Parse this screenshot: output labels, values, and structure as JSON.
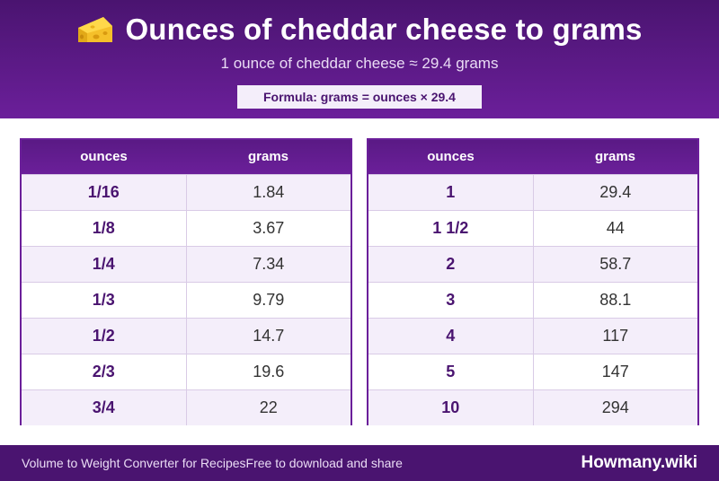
{
  "header": {
    "title": "Ounces of cheddar cheese to grams",
    "icon": "cheese-icon",
    "subtitle": "1 ounce of cheddar cheese ≈ 29.4 grams",
    "formula": "Formula: grams = ounces × 29.4"
  },
  "tables": [
    {
      "col_ounces": "ounces",
      "col_grams": "grams",
      "rows": [
        {
          "ounces": "1/16",
          "grams": "1.84"
        },
        {
          "ounces": "1/8",
          "grams": "3.67"
        },
        {
          "ounces": "1/4",
          "grams": "7.34"
        },
        {
          "ounces": "1/3",
          "grams": "9.79"
        },
        {
          "ounces": "1/2",
          "grams": "14.7"
        },
        {
          "ounces": "2/3",
          "grams": "19.6"
        },
        {
          "ounces": "3/4",
          "grams": "22"
        }
      ]
    },
    {
      "col_ounces": "ounces",
      "col_grams": "grams",
      "rows": [
        {
          "ounces": "1",
          "grams": "29.4"
        },
        {
          "ounces": "1 1/2",
          "grams": "44"
        },
        {
          "ounces": "2",
          "grams": "58.7"
        },
        {
          "ounces": "3",
          "grams": "88.1"
        },
        {
          "ounces": "4",
          "grams": "117"
        },
        {
          "ounces": "5",
          "grams": "147"
        },
        {
          "ounces": "10",
          "grams": "294"
        }
      ]
    }
  ],
  "footer": {
    "left_text": "Volume to Weight Converter for RecipesFree to download and share",
    "brand": "Howmany.wiki"
  },
  "colors": {
    "header_purple": "#4a1470",
    "accent_purple": "#6b1f9a",
    "row_tint": "#f4eefa"
  }
}
